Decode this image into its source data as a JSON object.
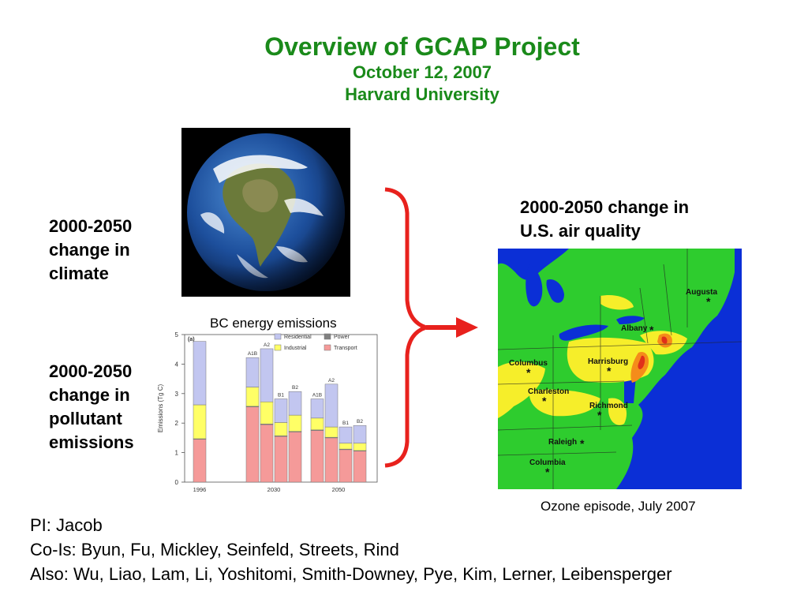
{
  "slide": {
    "title": "Overview of GCAP Project",
    "date": "October 12, 2007",
    "institution": "Harvard University"
  },
  "labels": {
    "climate": [
      "2000-2050",
      "change in",
      "climate"
    ],
    "emissions": [
      "2000-2050",
      "change in",
      "pollutant",
      "emissions"
    ],
    "air_quality": [
      "2000-2050 change in",
      "U.S. air quality"
    ]
  },
  "captions": {
    "bc_chart": "BC energy emissions",
    "ozone_map": "Ozone episode, July 2007"
  },
  "credits": {
    "pi": "PI: Jacob",
    "co_is": "Co-Is: Byun, Fu, Mickley, Seinfeld, Streets, Rind",
    "also": "Also: Wu, Liao, Lam, Li, Yoshitomi, Smith-Downey, Pye, Kim, Lerner, Leibensperger"
  },
  "colors": {
    "title_green": "#1a8a1a",
    "arrow_red": "#e8211d",
    "residential": "#c2c6f0",
    "industrial": "#ffff66",
    "transport": "#f59a99",
    "power": "#808080",
    "map_ocean": "#0b2fd6",
    "map_land": "#2ecc2e",
    "map_yellow": "#f6ee2a",
    "map_orange": "#f58c1a",
    "map_red": "#e0301a"
  },
  "map": {
    "cities": [
      "Augusta",
      "Albany",
      "Columbus",
      "Harrisburg",
      "Charleston",
      "Richmond",
      "Raleigh",
      "Columbia"
    ]
  },
  "chart_data": {
    "type": "bar",
    "panel_label": "(a)",
    "ylabel": "Emissions (Tg C)",
    "ylim": [
      0,
      5
    ],
    "yticks": [
      "0",
      "1",
      "2",
      "3",
      "4",
      "5"
    ],
    "groups": [
      {
        "label": "1996",
        "bars": [
          {
            "name": "",
            "transport": 1.45,
            "industrial": 1.15,
            "residential": 2.15,
            "power": 0.02
          }
        ]
      },
      {
        "label": "2030",
        "bars": [
          {
            "name": "A1B",
            "transport": 2.55,
            "industrial": 0.65,
            "residential": 1.0,
            "power": 0.02
          },
          {
            "name": "A2",
            "transport": 1.95,
            "industrial": 0.75,
            "residential": 1.8,
            "power": 0.02
          },
          {
            "name": "B1",
            "transport": 1.55,
            "industrial": 0.45,
            "residential": 0.8,
            "power": 0.02
          },
          {
            "name": "B2",
            "transport": 1.7,
            "industrial": 0.55,
            "residential": 0.8,
            "power": 0.02
          }
        ]
      },
      {
        "label": "2050",
        "bars": [
          {
            "name": "A1B",
            "transport": 1.75,
            "industrial": 0.4,
            "residential": 0.65,
            "power": 0.02
          },
          {
            "name": "A2",
            "transport": 1.5,
            "industrial": 0.35,
            "residential": 1.45,
            "power": 0.02
          },
          {
            "name": "B1",
            "transport": 1.1,
            "industrial": 0.2,
            "residential": 0.55,
            "power": 0.02
          },
          {
            "name": "B2",
            "transport": 1.05,
            "industrial": 0.25,
            "residential": 0.6,
            "power": 0.02
          }
        ]
      }
    ],
    "legend": [
      {
        "key": "residential",
        "label": "Residential"
      },
      {
        "key": "power",
        "label": "Power"
      },
      {
        "key": "industrial",
        "label": "Industrial"
      },
      {
        "key": "transport",
        "label": "Transport"
      }
    ],
    "legend_position": "top-right"
  }
}
